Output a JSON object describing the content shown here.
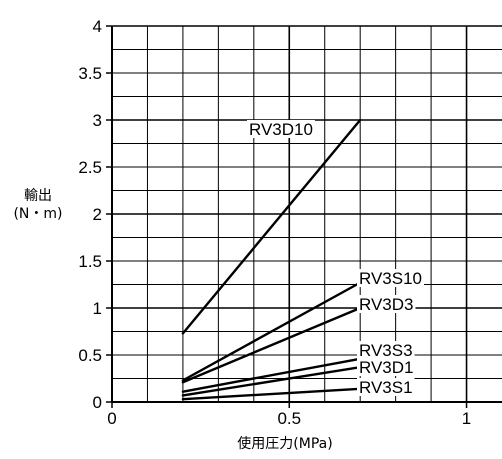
{
  "chart_data": {
    "type": "line",
    "xlabel": "使用圧力(MPa)",
    "ylabel_line1": "輸出",
    "ylabel_line2": "(N・m)",
    "xlim": [
      0,
      1.1
    ],
    "ylim": [
      0,
      4
    ],
    "x_ticks": [
      "0",
      "0.5",
      "1"
    ],
    "y_ticks": [
      "0",
      "0.5",
      "1",
      "1.5",
      "2",
      "2.5",
      "3",
      "3.5",
      "4"
    ],
    "grid": true,
    "series": [
      {
        "name": "RV3D10",
        "x": [
          0.2,
          0.7
        ],
        "y": [
          0.73,
          3.0
        ]
      },
      {
        "name": "RV3S10",
        "x": [
          0.2,
          0.7
        ],
        "y": [
          0.23,
          1.27
        ]
      },
      {
        "name": "RV3D3",
        "x": [
          0.2,
          0.7
        ],
        "y": [
          0.21,
          1.0
        ]
      },
      {
        "name": "RV3S3",
        "x": [
          0.2,
          0.7
        ],
        "y": [
          0.11,
          0.46
        ]
      },
      {
        "name": "RV3D1",
        "x": [
          0.2,
          0.7
        ],
        "y": [
          0.07,
          0.37
        ]
      },
      {
        "name": "RV3S1",
        "x": [
          0.2,
          0.7
        ],
        "y": [
          0.03,
          0.14
        ]
      }
    ]
  }
}
